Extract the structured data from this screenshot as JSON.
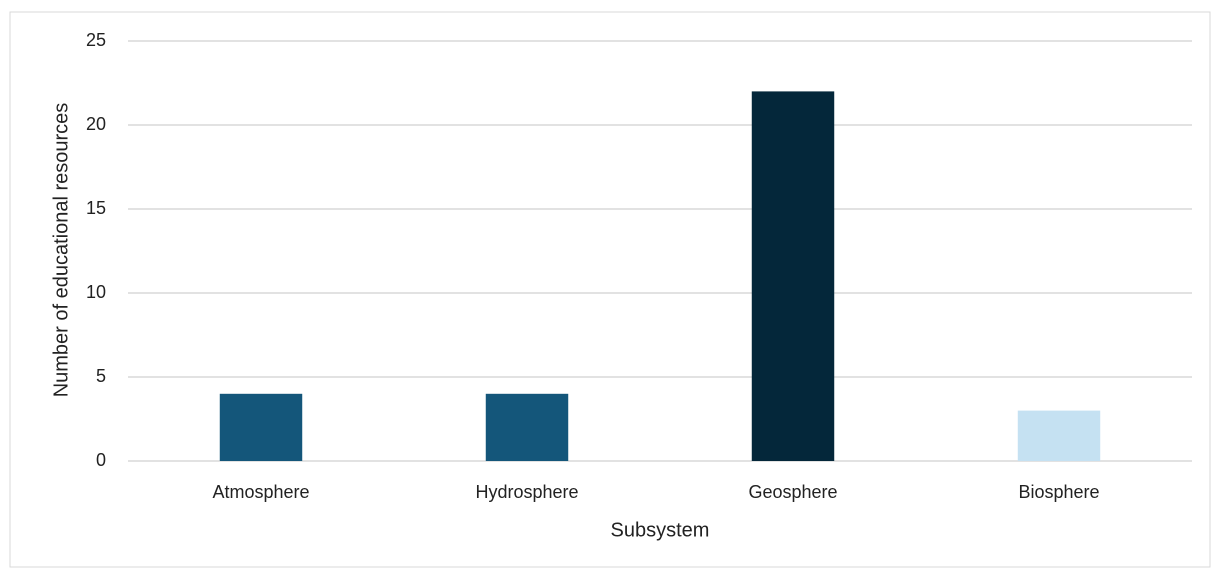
{
  "chart_data": {
    "type": "bar",
    "x_label": "Subsystem",
    "y_label": "Number of educational resources",
    "categories": [
      "Atmosphere",
      "Hydrosphere",
      "Geosphere",
      "Biosphere"
    ],
    "values": [
      4,
      4,
      22,
      3
    ],
    "colors": [
      "#14567a",
      "#14567a",
      "#04273a",
      "#c5e1f2"
    ],
    "ylim": [
      0,
      25
    ],
    "yticks": [
      0,
      5,
      10,
      15,
      20,
      25
    ],
    "grid": true
  }
}
